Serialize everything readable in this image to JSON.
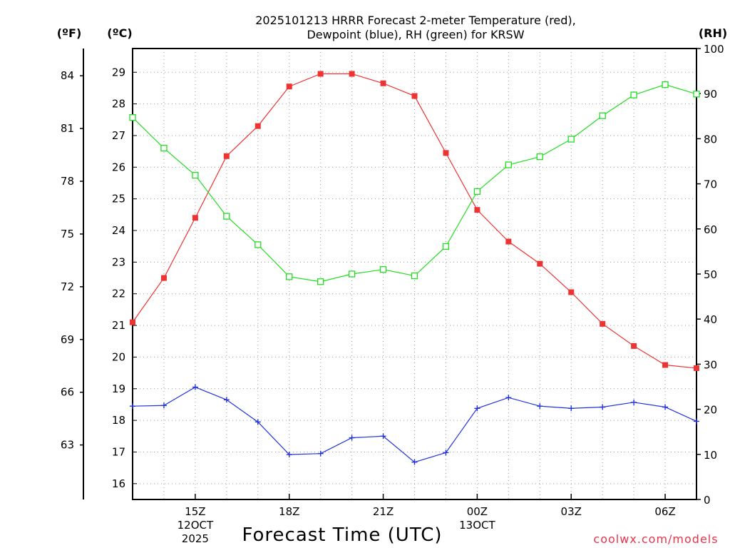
{
  "chart_data": {
    "type": "line",
    "title": [
      "2025101213 HRRR Forecast 2-meter Temperature (red),",
      "Dewpoint (blue), RH (green) for KRSW"
    ],
    "xlabel": "Forecast Time (UTC)",
    "credit": "coolwx.com/models",
    "units": {
      "fahrenheit": "(ºF)",
      "celsius": "(ºC)",
      "rh": "(RH)"
    },
    "hours": [
      13,
      14,
      15,
      16,
      17,
      18,
      19,
      20,
      21,
      22,
      23,
      24,
      25,
      26,
      27,
      28,
      29,
      30,
      31
    ],
    "x_range": [
      13,
      31
    ],
    "x_ticks": [
      {
        "hour": 15,
        "lines": [
          "15Z",
          "12OCT",
          "2025"
        ]
      },
      {
        "hour": 18,
        "lines": [
          "18Z"
        ]
      },
      {
        "hour": 21,
        "lines": [
          "21Z"
        ]
      },
      {
        "hour": 24,
        "lines": [
          "00Z",
          "13OCT"
        ]
      },
      {
        "hour": 27,
        "lines": [
          "03Z"
        ]
      },
      {
        "hour": 30,
        "lines": [
          "06Z"
        ]
      }
    ],
    "celsius_axis": {
      "range": [
        15.5,
        29.75
      ],
      "ticks": [
        16,
        17,
        18,
        19,
        20,
        21,
        22,
        23,
        24,
        25,
        26,
        27,
        28,
        29
      ]
    },
    "fahrenheit_ticks": [
      63,
      66,
      69,
      72,
      75,
      78,
      81,
      84
    ],
    "rh_axis": {
      "range": [
        0,
        100
      ],
      "ticks": [
        0,
        10,
        20,
        30,
        40,
        50,
        60,
        70,
        80,
        90,
        100
      ]
    },
    "series": [
      {
        "name": "Temperature",
        "axis": "celsius",
        "color": "#ee3333",
        "marker": "filled-square",
        "values": [
          21.1,
          22.5,
          24.4,
          26.35,
          27.3,
          28.55,
          28.95,
          28.95,
          28.65,
          28.25,
          26.45,
          24.65,
          23.65,
          22.95,
          22.05,
          21.05,
          20.35,
          19.75,
          19.65
        ]
      },
      {
        "name": "Dewpoint",
        "axis": "celsius",
        "color": "#2233dd",
        "marker": "plus",
        "values": [
          18.45,
          18.47,
          19.05,
          18.65,
          17.95,
          16.92,
          16.95,
          17.45,
          17.5,
          16.68,
          16.98,
          18.38,
          18.72,
          18.45,
          18.38,
          18.42,
          18.57,
          18.42,
          17.97
        ]
      },
      {
        "name": "RH",
        "axis": "rh",
        "color": "#22dd22",
        "marker": "open-square",
        "values": [
          84.7,
          77.9,
          71.9,
          62.8,
          56.5,
          49.4,
          48.3,
          50.0,
          51.0,
          49.6,
          56.1,
          68.3,
          74.2,
          76.0,
          79.9,
          85.1,
          89.7,
          92.0,
          89.9
        ]
      }
    ],
    "grid": true
  }
}
